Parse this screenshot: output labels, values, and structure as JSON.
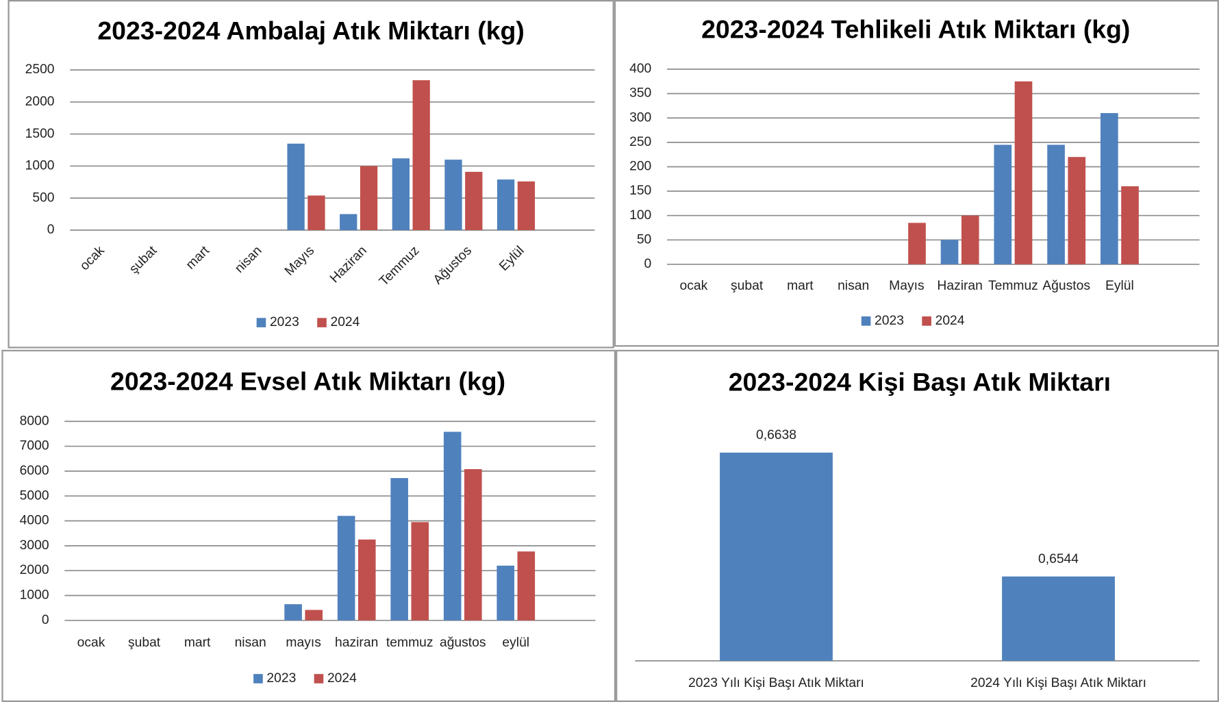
{
  "chart_data": [
    {
      "type": "bar",
      "title": "2023-2024 Ambalaj Atık Miktarı (kg)",
      "categories": [
        "ocak",
        "şubat",
        "mart",
        "nisan",
        "Mayıs",
        "Haziran",
        "Temmuz",
        "Ağustos",
        "Eylül",
        null
      ],
      "series": [
        {
          "name": "2023",
          "color": "#4f81bd",
          "values": [
            null,
            null,
            null,
            null,
            1350,
            250,
            1120,
            1100,
            790,
            null
          ]
        },
        {
          "name": "2024",
          "color": "#c0504d",
          "values": [
            null,
            null,
            null,
            null,
            540,
            1000,
            2340,
            910,
            760,
            null
          ]
        }
      ],
      "ylim": [
        0,
        2500
      ],
      "yticks": [
        0,
        500,
        1000,
        1500,
        2000,
        2500
      ],
      "grid": true,
      "legend": "bottom",
      "x_label_rotation": -45
    },
    {
      "type": "bar",
      "title": "2023-2024 Tehlikeli Atık Miktarı (kg)",
      "categories": [
        "ocak",
        "şubat",
        "mart",
        "nisan",
        "Mayıs",
        "Haziran",
        "Temmuz",
        "Ağustos",
        "Eylül",
        null
      ],
      "series": [
        {
          "name": "2023",
          "color": "#4f81bd",
          "values": [
            null,
            null,
            null,
            null,
            null,
            50,
            245,
            245,
            310,
            null
          ]
        },
        {
          "name": "2024",
          "color": "#c0504d",
          "values": [
            null,
            null,
            null,
            null,
            85,
            100,
            375,
            220,
            160,
            null
          ]
        }
      ],
      "ylim": [
        0,
        400
      ],
      "yticks": [
        0,
        50,
        100,
        150,
        200,
        250,
        300,
        350,
        400
      ],
      "grid": true,
      "legend": "bottom"
    },
    {
      "type": "bar",
      "title": "2023-2024 Evsel Atık Miktarı (kg)",
      "categories": [
        "ocak",
        "şubat",
        "mart",
        "nisan",
        "mayıs",
        "haziran",
        "temmuz",
        "ağustos",
        "eylül",
        null
      ],
      "series": [
        {
          "name": "2023",
          "color": "#4f81bd",
          "values": [
            null,
            null,
            null,
            null,
            650,
            4200,
            5720,
            7580,
            2200,
            null
          ]
        },
        {
          "name": "2024",
          "color": "#c0504d",
          "values": [
            null,
            null,
            null,
            null,
            420,
            3250,
            3950,
            6080,
            2770,
            null
          ]
        }
      ],
      "ylim": [
        0,
        8000
      ],
      "yticks": [
        0,
        1000,
        2000,
        3000,
        4000,
        5000,
        6000,
        7000,
        8000
      ],
      "grid": true,
      "legend": "bottom"
    },
    {
      "type": "bar",
      "title": "2023-2024 Kişi Başı Atık Miktarı",
      "categories": [
        "2023 Yılı Kişi Başı Atık Miktarı",
        "2024 Yılı Kişi Başı Atık Miktarı"
      ],
      "values": [
        0.6638,
        0.6544
      ],
      "value_labels": [
        "0,6638",
        "0,6544"
      ],
      "color": "#4f81bd",
      "ylim": [
        0.648,
        0.668
      ]
    }
  ]
}
